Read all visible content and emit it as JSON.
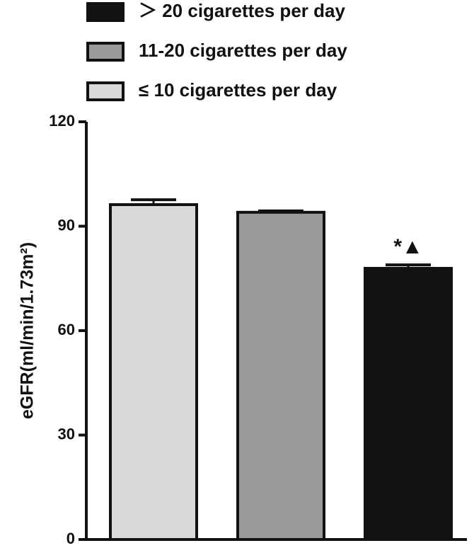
{
  "chart_data": {
    "type": "bar",
    "y_label": "eGFR(ml/min/1.73m²)",
    "categories": [
      null
    ],
    "series": [
      {
        "name": "≤ 10 cigarettes per day",
        "color": "#d9d9d9",
        "values": [
          96.2
        ],
        "errors": [
          1.4
        ]
      },
      {
        "name": "11-20 cigarettes per day",
        "color": "#9a9a9a",
        "values": [
          94.0
        ],
        "errors": [
          0.4
        ]
      },
      {
        "name": "＞ 20 cigarettes per day",
        "color": "#121212",
        "values": [
          77.9
        ],
        "errors": [
          1.0
        ],
        "annotation": "*▲"
      }
    ],
    "ylim": [
      0,
      120
    ],
    "yticks": [
      0,
      30,
      60,
      90,
      120
    ]
  }
}
